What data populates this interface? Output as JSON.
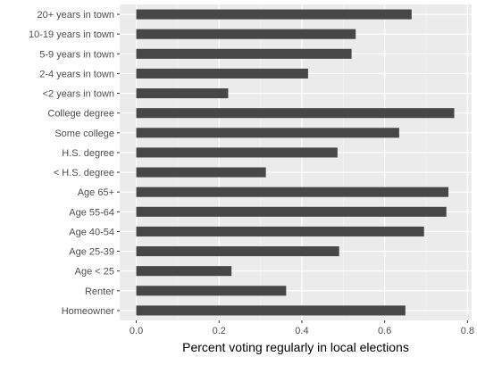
{
  "chart_data": {
    "type": "bar",
    "orientation": "horizontal",
    "categories": [
      "20+ years in town",
      "10-19 years in town",
      "5-9 years in town",
      "2-4 years in town",
      "<2 years in town",
      "College degree",
      "Some college",
      "H.S. degree",
      "< H.S. degree",
      "Age 65+",
      "Age 55-64",
      "Age 40-54",
      "Age 25-39",
      "Age < 25",
      "Renter",
      "Homeowner"
    ],
    "values": [
      0.665,
      0.53,
      0.52,
      0.415,
      0.222,
      0.768,
      0.635,
      0.486,
      0.313,
      0.754,
      0.749,
      0.695,
      0.49,
      0.23,
      0.362,
      0.65
    ],
    "title": "",
    "xlabel": "Percent voting regularly in local elections",
    "ylabel": "",
    "xlim": [
      -0.04,
      0.81
    ],
    "xticks": [
      0.0,
      0.2,
      0.4,
      0.6,
      0.8
    ],
    "xtick_labels": [
      "0.0",
      "0.2",
      "0.4",
      "0.6",
      "0.8"
    ],
    "grid": true,
    "legend": "none",
    "colors": {
      "panel": "#ebebeb",
      "grid_major": "#ffffff",
      "grid_minor": "#f5f5f5",
      "bar": "#474747",
      "tick_text": "#4d4d4d",
      "axis_title": "#000000"
    }
  }
}
